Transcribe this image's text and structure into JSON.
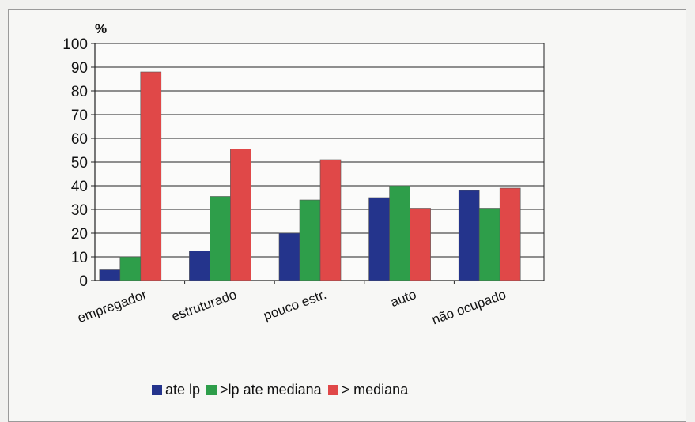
{
  "chart_data": {
    "type": "bar",
    "unit_label": "%",
    "categories": [
      "empregador",
      "estruturado",
      "pouco estr.",
      "auto",
      "não ocupado"
    ],
    "series": [
      {
        "name": "ate lp",
        "color": "#24348c",
        "values": [
          4.5,
          12.5,
          20,
          35,
          38
        ]
      },
      {
        "name": ">lp ate mediana",
        "color": "#2e9e4a",
        "values": [
          10,
          35.5,
          34,
          40,
          30.5
        ]
      },
      {
        "name": "> mediana",
        "color": "#e04848",
        "values": [
          88,
          55.5,
          51,
          30.5,
          39
        ]
      }
    ],
    "ylim": [
      0,
      100
    ],
    "yticks": [
      0,
      10,
      20,
      30,
      40,
      50,
      60,
      70,
      80,
      90,
      100
    ],
    "grid": true,
    "legend": "bottom"
  }
}
